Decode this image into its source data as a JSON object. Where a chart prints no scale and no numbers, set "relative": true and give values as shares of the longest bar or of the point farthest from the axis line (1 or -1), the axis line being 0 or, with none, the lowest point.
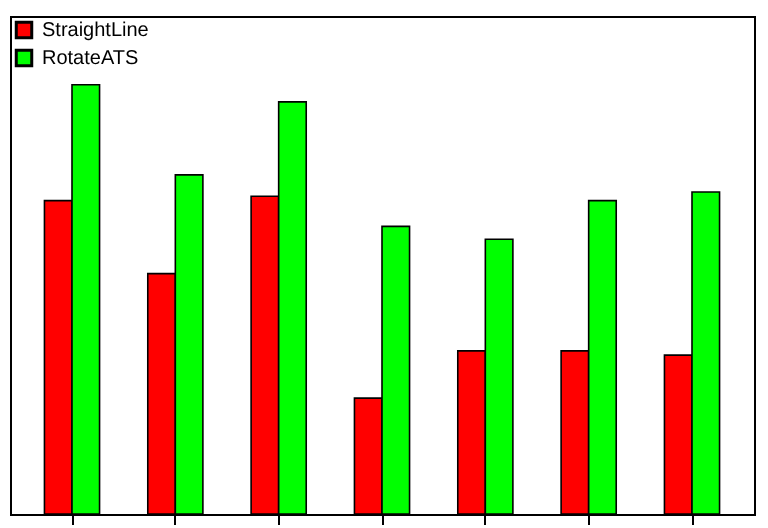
{
  "chart_data": {
    "type": "bar",
    "relative": true,
    "categories": [
      null,
      null,
      null,
      null,
      null,
      null,
      null
    ],
    "series": [
      {
        "name": "StraightLine",
        "color": "#ff0000",
        "values": [
          0.73,
          0.56,
          0.74,
          0.27,
          0.38,
          0.38,
          0.37
        ]
      },
      {
        "name": "RotateATS",
        "color": "#00ff00",
        "values": [
          1,
          0.79,
          0.96,
          0.67,
          0.64,
          0.73,
          0.75
        ]
      }
    ],
    "legend": "top left",
    "grid": false
  }
}
